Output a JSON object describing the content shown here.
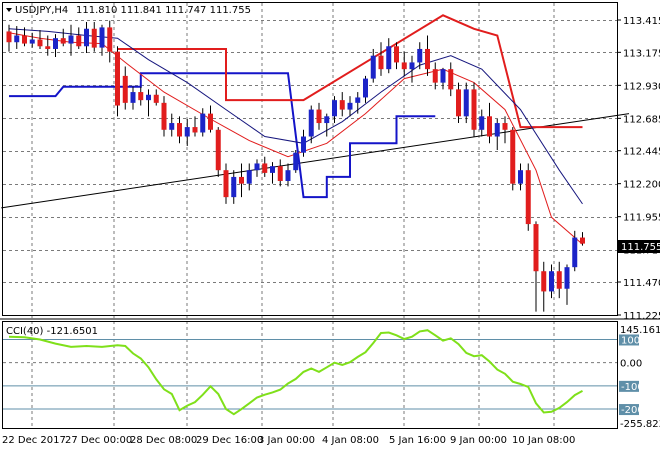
{
  "header": {
    "symbol": "USDJPY,H4",
    "ohlc": "111.810 111.841 111.747 111.755"
  },
  "colors": {
    "bull": "#1c24c8",
    "bear": "#e11d1d",
    "ma_fast": "#e11d1d",
    "ma_slow": "#16167e",
    "stop_up": "#1414c8",
    "stop_down": "#e11d1d",
    "trendline": "#000000",
    "cci": "#7fe01a",
    "level_line": "#5f8fa8",
    "grid": "#7a7a7a"
  },
  "chart_data": [
    {
      "type": "candlestick",
      "title": "USDJPY,H4",
      "ylim": [
        111.225,
        113.415
      ],
      "y_ticks": [
        "113.415",
        "113.175",
        "112.930",
        "112.685",
        "112.445",
        "112.200",
        "111.955",
        "111.710",
        "111.470",
        "111.225"
      ],
      "x_tick_labels": [
        "22 Dec 2017",
        "27 Dec 00:00",
        "28 Dec 08:00",
        "29 Dec 16:00",
        "3 Jan 00:00",
        "4 Jan 08:00",
        "5 Jan 16:00",
        "9 Jan 00:00",
        "10 Jan 08:00"
      ],
      "current_price": "111.755",
      "candles": [
        [
          113.33,
          113.38,
          113.18,
          113.25
        ],
        [
          113.25,
          113.37,
          113.2,
          113.3
        ],
        [
          113.3,
          113.36,
          113.22,
          113.24
        ],
        [
          113.24,
          113.32,
          113.21,
          113.27
        ],
        [
          113.27,
          113.34,
          113.2,
          113.22
        ],
        [
          113.22,
          113.3,
          113.15,
          113.2
        ],
        [
          113.2,
          113.31,
          113.14,
          113.28
        ],
        [
          113.28,
          113.35,
          113.22,
          113.24
        ],
        [
          113.24,
          113.38,
          113.15,
          113.3
        ],
        [
          113.3,
          113.36,
          113.2,
          113.22
        ],
        [
          113.22,
          113.4,
          113.17,
          113.35
        ],
        [
          113.35,
          113.4,
          113.18,
          113.21
        ],
        [
          113.21,
          113.38,
          113.15,
          113.36
        ],
        [
          113.36,
          113.41,
          113.1,
          113.18
        ],
        [
          113.18,
          113.22,
          112.7,
          112.78
        ],
        [
          113.0,
          113.07,
          112.75,
          112.8
        ],
        [
          112.8,
          112.92,
          112.75,
          112.88
        ],
        [
          112.88,
          112.92,
          112.78,
          112.82
        ],
        [
          112.82,
          112.9,
          112.7,
          112.86
        ],
        [
          112.86,
          112.9,
          112.78,
          112.8
        ],
        [
          112.8,
          112.85,
          112.55,
          112.6
        ],
        [
          112.6,
          112.72,
          112.55,
          112.65
        ],
        [
          112.65,
          112.7,
          112.5,
          112.55
        ],
        [
          112.55,
          112.68,
          112.48,
          112.62
        ],
        [
          112.62,
          112.7,
          112.55,
          112.58
        ],
        [
          112.58,
          112.76,
          112.55,
          112.72
        ],
        [
          112.72,
          112.78,
          112.58,
          112.6
        ],
        [
          112.6,
          112.62,
          112.25,
          112.3
        ],
        [
          112.3,
          112.35,
          112.05,
          112.1
        ],
        [
          112.1,
          112.3,
          112.05,
          112.25
        ],
        [
          112.25,
          112.35,
          112.1,
          112.2
        ],
        [
          112.2,
          112.35,
          112.15,
          112.3
        ],
        [
          112.3,
          112.38,
          112.25,
          112.35
        ],
        [
          112.35,
          112.4,
          112.25,
          112.28
        ],
        [
          112.28,
          112.36,
          112.2,
          112.33
        ],
        [
          112.33,
          112.38,
          112.18,
          112.22
        ],
        [
          112.22,
          112.35,
          112.18,
          112.3
        ],
        [
          112.3,
          112.45,
          112.28,
          112.43
        ],
        [
          112.43,
          112.6,
          112.4,
          112.55
        ],
        [
          112.55,
          112.78,
          112.5,
          112.75
        ],
        [
          112.75,
          112.8,
          112.6,
          112.65
        ],
        [
          112.65,
          112.72,
          112.55,
          112.7
        ],
        [
          112.7,
          112.85,
          112.65,
          112.82
        ],
        [
          112.82,
          112.88,
          112.7,
          112.75
        ],
        [
          112.75,
          112.85,
          112.7,
          112.8
        ],
        [
          112.8,
          112.88,
          112.72,
          112.84
        ],
        [
          112.84,
          113.0,
          112.8,
          112.98
        ],
        [
          112.98,
          113.2,
          112.95,
          113.15
        ],
        [
          113.15,
          113.25,
          113.0,
          113.05
        ],
        [
          113.05,
          113.28,
          113.02,
          113.22
        ],
        [
          113.22,
          113.25,
          113.05,
          113.1
        ],
        [
          113.1,
          113.18,
          113.0,
          113.05
        ],
        [
          113.05,
          113.15,
          112.95,
          113.1
        ],
        [
          113.1,
          113.25,
          113.05,
          113.2
        ],
        [
          113.2,
          113.3,
          113.0,
          113.05
        ],
        [
          113.05,
          113.1,
          112.9,
          112.95
        ],
        [
          112.95,
          113.06,
          112.9,
          113.05
        ],
        [
          113.05,
          113.1,
          112.85,
          112.9
        ],
        [
          112.9,
          112.95,
          112.65,
          112.7
        ],
        [
          112.7,
          112.95,
          112.65,
          112.9
        ],
        [
          112.9,
          112.95,
          112.55,
          112.6
        ],
        [
          112.6,
          112.75,
          112.55,
          112.7
        ],
        [
          112.7,
          112.8,
          112.5,
          112.55
        ],
        [
          112.55,
          112.68,
          112.45,
          112.65
        ],
        [
          112.65,
          112.7,
          112.5,
          112.6
        ],
        [
          112.6,
          112.62,
          112.15,
          112.2
        ],
        [
          112.2,
          112.35,
          112.15,
          112.3
        ],
        [
          112.3,
          112.35,
          111.85,
          111.9
        ],
        [
          111.9,
          111.92,
          111.25,
          111.55
        ],
        [
          111.55,
          111.62,
          111.25,
          111.4
        ],
        [
          111.4,
          111.6,
          111.35,
          111.55
        ],
        [
          111.55,
          111.62,
          111.35,
          111.42
        ],
        [
          111.42,
          111.6,
          111.3,
          111.58
        ],
        [
          111.58,
          111.85,
          111.55,
          111.8
        ],
        [
          111.8,
          111.84,
          111.74,
          111.755
        ]
      ],
      "series": [
        {
          "name": "",
          "points": [
            [
              0,
              113.32
            ],
            [
              4,
              113.28
            ],
            [
              8,
              113.25
            ],
            [
              12,
              113.24
            ],
            [
              15,
              113.1
            ],
            [
              20,
              112.88
            ],
            [
              26,
              112.68
            ],
            [
              31,
              112.52
            ],
            [
              36,
              112.4
            ],
            [
              41,
              112.5
            ],
            [
              46,
              112.72
            ],
            [
              51,
              112.98
            ],
            [
              56,
              113.05
            ],
            [
              60,
              112.95
            ],
            [
              64,
              112.75
            ],
            [
              68,
              112.3
            ],
            [
              70,
              111.95
            ],
            [
              74,
              111.75
            ]
          ]
        },
        {
          "name": "",
          "points": [
            [
              0,
              113.35
            ],
            [
              5,
              113.33
            ],
            [
              10,
              113.3
            ],
            [
              14,
              113.28
            ],
            [
              18,
              113.12
            ],
            [
              23,
              112.95
            ],
            [
              28,
              112.75
            ],
            [
              33,
              112.55
            ],
            [
              38,
              112.5
            ],
            [
              43,
              112.66
            ],
            [
              48,
              112.88
            ],
            [
              53,
              113.08
            ],
            [
              57,
              113.15
            ],
            [
              61,
              113.05
            ],
            [
              66,
              112.75
            ],
            [
              71,
              112.3
            ],
            [
              74,
              112.05
            ]
          ]
        }
      ],
      "stop_levels": {
        "support": [
          [
            0,
            112.85
          ],
          [
            6,
            112.85
          ],
          [
            7,
            112.92
          ],
          [
            17,
            112.92
          ],
          [
            17,
            113.02
          ],
          [
            29,
            113.02
          ],
          [
            29,
            113.02
          ],
          [
            36,
            113.02
          ],
          [
            38,
            112.1
          ],
          [
            41,
            112.1
          ],
          [
            41,
            112.25
          ],
          [
            44,
            112.25
          ],
          [
            44,
            112.5
          ],
          [
            50,
            112.5
          ],
          [
            50,
            112.7
          ],
          [
            55,
            112.7
          ]
        ],
        "resistance": [
          [
            14,
            113.2
          ],
          [
            28,
            113.2
          ],
          [
            28,
            112.82
          ],
          [
            38,
            112.82
          ],
          [
            56,
            113.45
          ],
          [
            60,
            113.35
          ],
          [
            63,
            113.3
          ],
          [
            66,
            112.62
          ],
          [
            74,
            112.62
          ]
        ]
      },
      "trendline": {
        "start": [
          -1,
          112.02
        ],
        "end": [
          80,
          112.72
        ]
      }
    },
    {
      "type": "line",
      "title": "CCI(40) -121.6501",
      "ylim": [
        -255.8239,
        145.1615
      ],
      "y_ticks": [
        "145.1615",
        "100",
        "0.00",
        "-100",
        "-200",
        "-255.8239"
      ],
      "levels": [
        100,
        -100,
        -200
      ],
      "series": [
        {
          "name": "CCI(40)",
          "points": [
            [
              0,
              112
            ],
            [
              2,
              110
            ],
            [
              4,
              100
            ],
            [
              6,
              82
            ],
            [
              8,
              68
            ],
            [
              10,
              72
            ],
            [
              12,
              68
            ],
            [
              14,
              75
            ],
            [
              15,
              72
            ],
            [
              16,
              40
            ],
            [
              17,
              18
            ],
            [
              18,
              -20
            ],
            [
              19,
              -72
            ],
            [
              20,
              -115
            ],
            [
              21,
              -135
            ],
            [
              22,
              -205
            ],
            [
              23,
              -185
            ],
            [
              24,
              -170
            ],
            [
              25,
              -138
            ],
            [
              26,
              -102
            ],
            [
              27,
              -135
            ],
            [
              28,
              -200
            ],
            [
              29,
              -222
            ],
            [
              30,
              -200
            ],
            [
              31,
              -175
            ],
            [
              32,
              -150
            ],
            [
              33,
              -138
            ],
            [
              34,
              -128
            ],
            [
              35,
              -116
            ],
            [
              36,
              -90
            ],
            [
              37,
              -70
            ],
            [
              38,
              -40
            ],
            [
              39,
              -25
            ],
            [
              40,
              -40
            ],
            [
              41,
              -20
            ],
            [
              42,
              0
            ],
            [
              43,
              -10
            ],
            [
              44,
              2
            ],
            [
              45,
              25
            ],
            [
              46,
              45
            ],
            [
              47,
              85
            ],
            [
              48,
              128
            ],
            [
              49,
              130
            ],
            [
              50,
              118
            ],
            [
              51,
              102
            ],
            [
              52,
              112
            ],
            [
              53,
              135
            ],
            [
              54,
              140
            ],
            [
              55,
              118
            ],
            [
              56,
              95
            ],
            [
              57,
              105
            ],
            [
              58,
              80
            ],
            [
              59,
              42
            ],
            [
              60,
              28
            ],
            [
              61,
              32
            ],
            [
              62,
              5
            ],
            [
              63,
              -30
            ],
            [
              64,
              -48
            ],
            [
              65,
              -82
            ],
            [
              66,
              -92
            ],
            [
              67,
              -105
            ],
            [
              68,
              -175
            ],
            [
              69,
              -215
            ],
            [
              70,
              -212
            ],
            [
              71,
              -195
            ],
            [
              72,
              -170
            ],
            [
              73,
              -140
            ],
            [
              74,
              -121.65
            ]
          ]
        }
      ]
    }
  ]
}
